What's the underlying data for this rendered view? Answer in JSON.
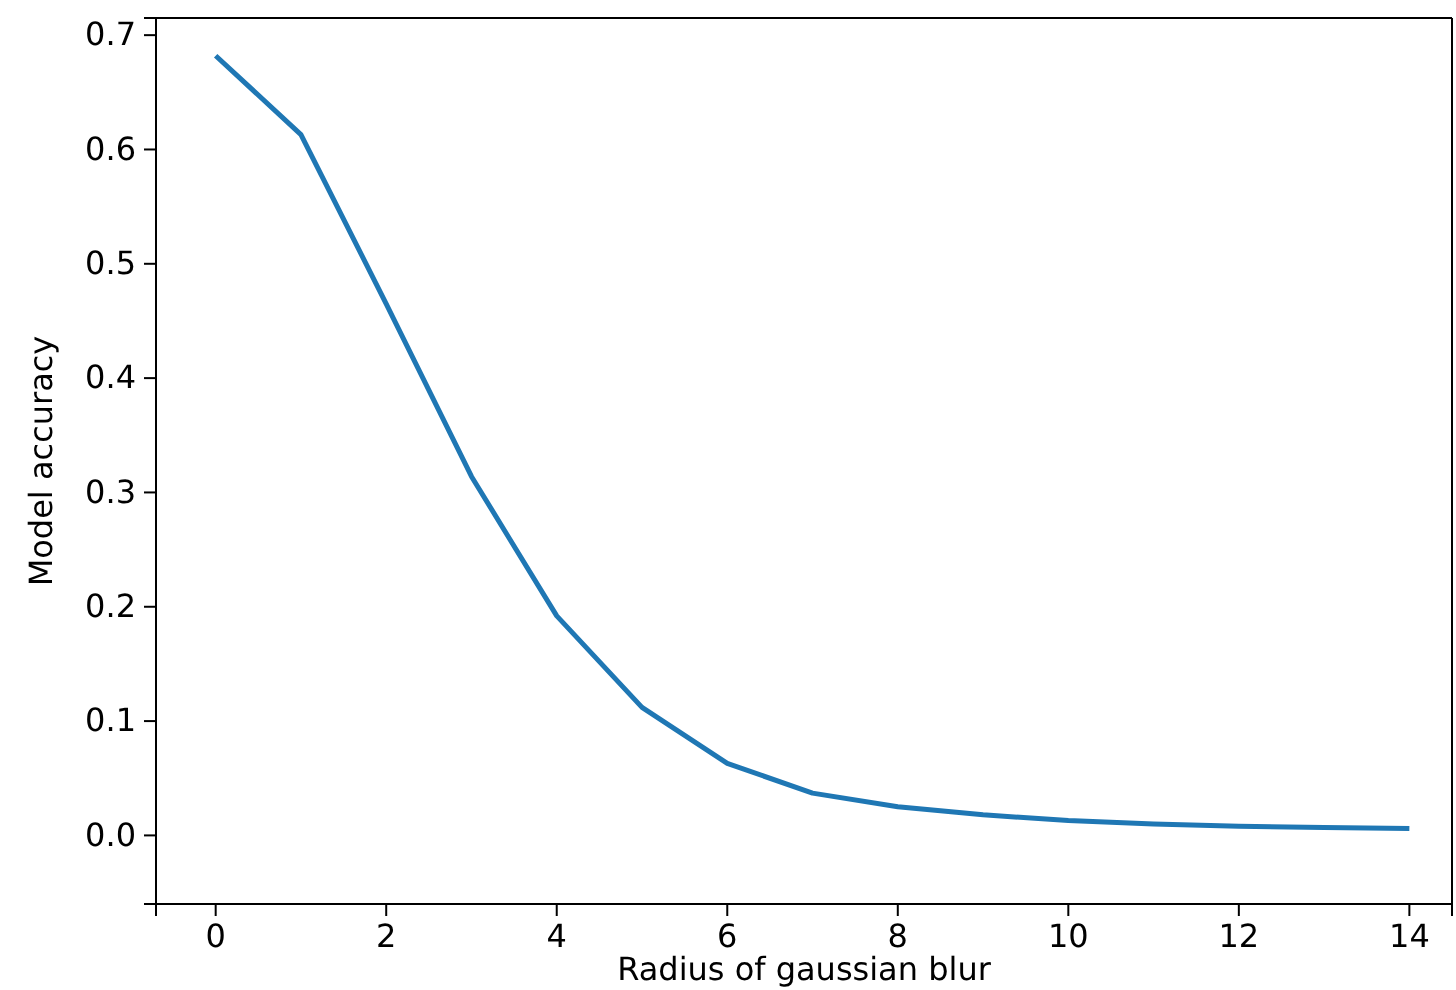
{
  "chart_data": {
    "type": "line",
    "xlabel": "Radius of gaussian blur",
    "ylabel": "Model accuracy",
    "x": [
      0,
      1,
      2,
      3,
      4,
      5,
      6,
      7,
      8,
      9,
      10,
      11,
      12,
      13,
      14
    ],
    "series": [
      {
        "color": "#1f77b4",
        "values": [
          0.682,
          0.613,
          0.465,
          0.314,
          0.192,
          0.112,
          0.063,
          0.037,
          0.025,
          0.018,
          0.013,
          0.01,
          0.008,
          0.007,
          0.006
        ]
      }
    ],
    "xlim": [
      -0.7,
      14.5
    ],
    "ylim": [
      -0.06,
      0.715
    ],
    "xticks": [
      0,
      2,
      4,
      6,
      8,
      10,
      12,
      14
    ],
    "yticks": [
      {
        "value": 0,
        "label": "0.0"
      },
      {
        "value": 0.1,
        "label": "0.1"
      },
      {
        "value": 0.2,
        "label": "0.2"
      },
      {
        "value": 0.3,
        "label": "0.3"
      },
      {
        "value": 0.4,
        "label": "0.4"
      },
      {
        "value": 0.5,
        "label": "0.5"
      },
      {
        "value": 0.6,
        "label": "0.6"
      },
      {
        "value": 0.7,
        "label": "0.7"
      }
    ],
    "marker": "none",
    "line_style": "solid"
  }
}
